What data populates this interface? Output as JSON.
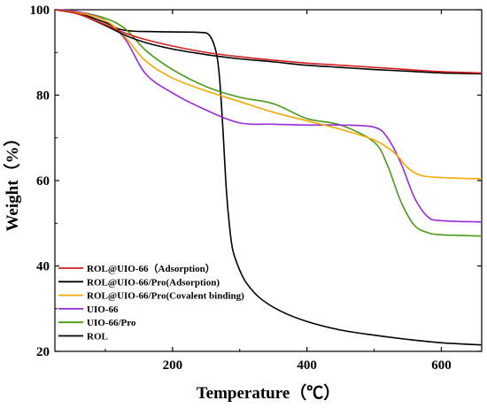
{
  "chart_data": {
    "type": "line",
    "xlabel": "Temperature（℃）",
    "ylabel": "Weight（%）",
    "xlim": [
      25,
      660
    ],
    "ylim": [
      20,
      100
    ],
    "xticks": [
      "200",
      "400",
      "600"
    ],
    "yticks": [
      "20",
      "40",
      "60",
      "80",
      "100"
    ],
    "grid": false,
    "legend_position": "bottom-left",
    "series": [
      {
        "name": "ROL@UIO-66（Adsorption）",
        "color": "#d42020",
        "x": [
          25,
          60,
          100,
          130,
          160,
          200,
          250,
          300,
          350,
          400,
          450,
          500,
          550,
          600,
          660
        ],
        "y": [
          100,
          99.0,
          96.5,
          94.5,
          93.0,
          91.5,
          90.0,
          89.0,
          88.2,
          87.5,
          87.0,
          86.5,
          86.0,
          85.5,
          85.2
        ]
      },
      {
        "name": "ROL@UIO-66/Pro(Adsorption)",
        "color": "#000000",
        "x": [
          25,
          60,
          100,
          130,
          160,
          200,
          250,
          300,
          350,
          400,
          450,
          500,
          550,
          600,
          660
        ],
        "y": [
          100,
          99.0,
          96.3,
          94.0,
          92.3,
          90.8,
          89.5,
          88.5,
          87.8,
          87.0,
          86.5,
          86.0,
          85.6,
          85.2,
          85.0
        ]
      },
      {
        "name": "ROL@UIO-66/Pro(Covalent binding)",
        "color": "#f5a800",
        "x": [
          25,
          60,
          100,
          130,
          160,
          200,
          250,
          300,
          350,
          400,
          450,
          500,
          530,
          550,
          570,
          600,
          660
        ],
        "y": [
          100,
          99.3,
          97.5,
          93.5,
          88.0,
          84.0,
          81.0,
          78.5,
          76.0,
          74.0,
          72.0,
          69.5,
          66.5,
          63.0,
          61.2,
          60.7,
          60.4
        ]
      },
      {
        "name": "UIO-66",
        "color": "#9a2ad8",
        "x": [
          25,
          60,
          100,
          130,
          160,
          200,
          250,
          300,
          350,
          400,
          450,
          500,
          520,
          540,
          560,
          580,
          600,
          660
        ],
        "y": [
          100,
          99.5,
          97.5,
          93.0,
          85.0,
          80.5,
          76.5,
          73.5,
          73.2,
          73.0,
          73.0,
          72.5,
          70.0,
          64.0,
          56.0,
          51.5,
          50.6,
          50.3
        ]
      },
      {
        "name": "UIO-66/Pro",
        "color": "#4a9a1a",
        "x": [
          25,
          60,
          100,
          130,
          160,
          200,
          250,
          300,
          350,
          400,
          450,
          500,
          520,
          540,
          560,
          580,
          600,
          660
        ],
        "y": [
          100,
          99.5,
          98.0,
          95.5,
          90.5,
          86.0,
          82.0,
          79.5,
          78.0,
          74.5,
          73.0,
          69.0,
          63.5,
          55.0,
          49.5,
          47.8,
          47.3,
          47.0
        ]
      },
      {
        "name": "ROL",
        "color": "#000000",
        "x": [
          25,
          60,
          100,
          120,
          140,
          160,
          200,
          240,
          255,
          265,
          270,
          275,
          280,
          285,
          290,
          300,
          310,
          330,
          360,
          400,
          450,
          500,
          550,
          600,
          660
        ],
        "y": [
          100,
          99.2,
          97.0,
          95.5,
          95.0,
          94.9,
          94.8,
          94.7,
          94.0,
          90.0,
          84.0,
          72.0,
          58.0,
          49.0,
          43.5,
          39.0,
          36.0,
          32.5,
          29.5,
          27.0,
          25.0,
          23.8,
          22.8,
          22.0,
          21.5
        ]
      }
    ]
  }
}
